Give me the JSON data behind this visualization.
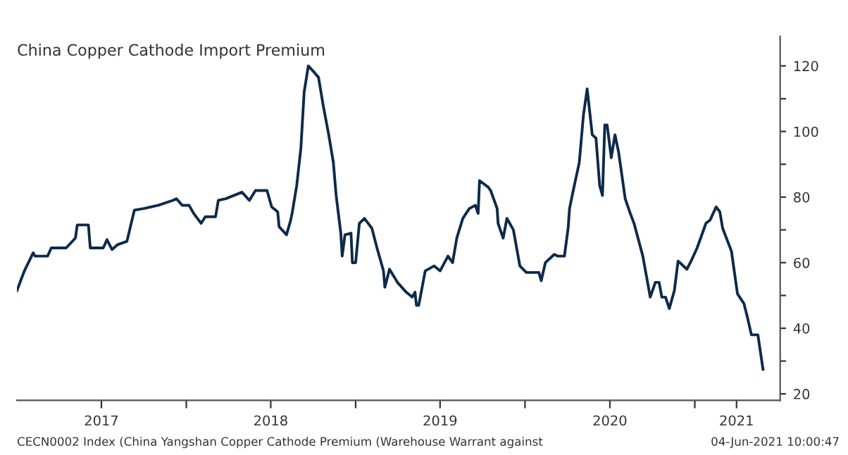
{
  "chart_data": {
    "type": "line",
    "title": "China Copper Cathode Import Premium",
    "annotations": [
      "CECN0002 Index (China Yangshan Copper Cathode Premium (Warehouse Warrant against",
      "04-Jun-2021 10:00:47"
    ],
    "x": [
      "2017-01-01",
      "2017-01-09",
      "2017-01-17",
      "2017-02-05",
      "2017-02-09",
      "2017-03-08",
      "2017-03-16",
      "2017-04-17",
      "2017-05-07",
      "2017-05-11",
      "2017-06-04",
      "2017-06-08",
      "2017-07-06",
      "2017-07-14",
      "2017-07-25",
      "2017-08-06",
      "2017-08-26",
      "2017-09-11",
      "2017-10-01",
      "2017-11-02",
      "2017-12-03",
      "2017-12-11",
      "2017-12-23",
      "2018-01-07",
      "2018-01-17",
      "2018-02-02",
      "2018-02-11",
      "2018-03-05",
      "2018-03-11",
      "2018-03-27",
      "2018-05-01",
      "2018-05-17",
      "2018-05-30",
      "2018-06-24",
      "2018-07-04",
      "2018-07-17",
      "2018-07-20",
      "2018-08-05",
      "2018-08-14",
      "2018-08-17",
      "2018-08-27",
      "2018-09-05",
      "2018-09-12",
      "2018-09-21",
      "2018-10-04",
      "2018-10-13",
      "2018-10-23",
      "2018-11-04",
      "2018-11-14",
      "2018-11-20",
      "2018-11-30",
      "2018-12-03",
      "2018-12-09",
      "2018-12-22",
      "2018-12-25",
      "2019-01-01",
      "2019-01-09",
      "2019-01-20",
      "2019-02-05",
      "2019-02-16",
      "2019-03-02",
      "2019-03-05",
      "2019-03-15",
      "2019-04-01",
      "2019-04-20",
      "2019-05-03",
      "2019-05-09",
      "2019-05-12",
      "2019-05-17",
      "2019-05-31",
      "2019-06-19",
      "2019-07-02",
      "2019-07-19",
      "2019-07-29",
      "2019-08-07",
      "2019-08-20",
      "2019-09-03",
      "2019-09-16",
      "2019-09-22",
      "2019-09-25",
      "2019-10-14",
      "2019-10-19",
      "2019-11-02",
      "2019-11-04",
      "2019-11-15",
      "2019-11-23",
      "2019-12-07",
      "2019-12-21",
      "2020-01-04",
      "2020-01-31",
      "2020-02-05",
      "2020-02-14",
      "2020-03-04",
      "2020-03-12",
      "2020-03-26",
      "2020-04-03",
      "2020-04-06",
      "2020-04-14",
      "2020-04-27",
      "2020-05-06",
      "2020-05-14",
      "2020-05-25",
      "2020-06-02",
      "2020-06-10",
      "2020-06-16",
      "2020-06-21",
      "2020-06-26",
      "2020-07-05",
      "2020-07-13",
      "2020-07-21",
      "2020-08-04",
      "2020-08-15",
      "2020-08-23",
      "2020-09-11",
      "2020-09-27",
      "2020-10-08",
      "2020-10-16",
      "2020-10-22",
      "2020-10-30",
      "2020-11-07",
      "2020-11-18",
      "2020-11-26",
      "2020-12-15",
      "2020-12-24",
      "2021-01-06",
      "2021-01-25",
      "2021-02-03",
      "2021-02-16",
      "2021-02-24",
      "2021-03-02",
      "2021-03-21",
      "2021-04-03",
      "2021-04-17",
      "2021-04-25",
      "2021-05-03",
      "2021-05-17",
      "2021-05-28"
    ],
    "series": [
      {
        "color": "#0d2a4a",
        "values": [
          51.5,
          54.5,
          57.5,
          63,
          62,
          62,
          64.5,
          64.5,
          67.5,
          71.5,
          71.5,
          64.5,
          64.5,
          67,
          64,
          65.5,
          66.5,
          76,
          76.5,
          77.5,
          79,
          79.5,
          77.5,
          77.5,
          75,
          72,
          74,
          74,
          79,
          79.5,
          81.5,
          79,
          82,
          82,
          77,
          75.5,
          71,
          68.5,
          73,
          75,
          83.5,
          95,
          112,
          120,
          118,
          116.5,
          108,
          99,
          90.5,
          80.5,
          69,
          62,
          68.5,
          69,
          60,
          60,
          72,
          73.5,
          70.5,
          64.5,
          57.5,
          52.5,
          58,
          54,
          51,
          49.5,
          51,
          47,
          47,
          57.5,
          59,
          57.5,
          62,
          60,
          67.5,
          73.5,
          76.5,
          77.5,
          75,
          85,
          83,
          82,
          76.5,
          72,
          67.5,
          73.5,
          70,
          59,
          57,
          57,
          54.5,
          60,
          62.5,
          62,
          62,
          70.5,
          76.5,
          82,
          90.5,
          105,
          113,
          99,
          98,
          83.5,
          80.5,
          102,
          102,
          92,
          99,
          93.5,
          79.5,
          75,
          72,
          62,
          49.5,
          54,
          54,
          49.5,
          49.5,
          46,
          51.5,
          60.5,
          58,
          60.5,
          64.5,
          72,
          73,
          77,
          75.5,
          70.5,
          63.5,
          50.5,
          47.5,
          43,
          38,
          38,
          27.5
        ]
      }
    ],
    "xlim": [
      "2017-01-01",
      "2021-07-04"
    ],
    "xticks": [
      {
        "value": "2017-07-02",
        "label": "2017"
      },
      {
        "value": "2018-01-01",
        "label": null
      },
      {
        "value": "2018-07-02",
        "label": "2018"
      },
      {
        "value": "2019-01-01",
        "label": null
      },
      {
        "value": "2019-07-02",
        "label": "2019"
      },
      {
        "value": "2020-01-01",
        "label": null
      },
      {
        "value": "2020-07-02",
        "label": "2020"
      },
      {
        "value": "2021-01-01",
        "label": null
      },
      {
        "value": "2021-04-01",
        "label": "2021"
      }
    ],
    "ylim": [
      18,
      129
    ],
    "yticks": [
      20,
      {
        "value": 30,
        "label": null
      },
      40,
      {
        "value": 50,
        "label": null
      },
      60,
      {
        "value": 70,
        "label": null
      },
      80,
      {
        "value": 90,
        "label": null
      },
      100,
      {
        "value": 110,
        "label": null
      },
      120
    ],
    "grid": false,
    "marker": "none",
    "line_style": "solid"
  }
}
